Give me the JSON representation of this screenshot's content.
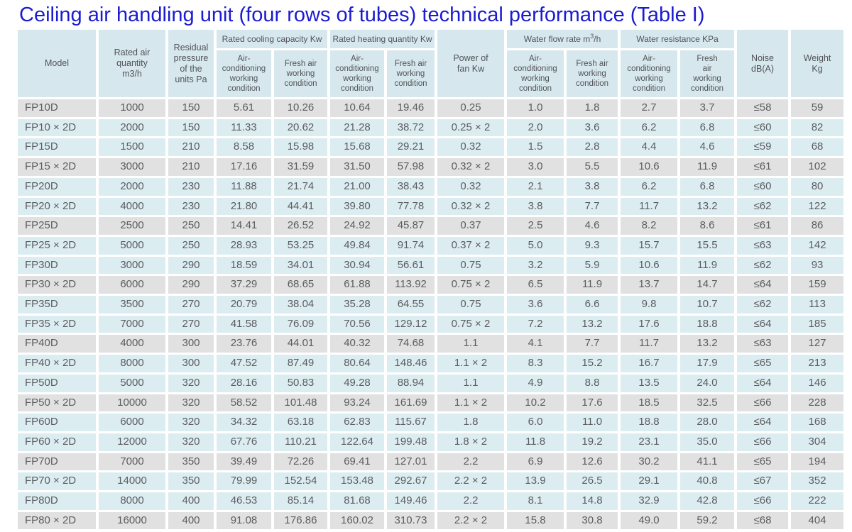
{
  "title": "Ceiling air handling unit (four rows of tubes) technical performance (Table I)",
  "colors": {
    "title_blue": "#1b1bd2",
    "header_cell_bg": "#d6e8ee",
    "row_blue_bg": "#dcedf2",
    "row_gray_bg": "#e1e1e1",
    "cell_text": "#5b5c5e"
  },
  "table": {
    "headers": {
      "model": "Model",
      "rated_air_quantity": "Rated air\nquantity\nm3/h",
      "residual_pressure": "Residual\npressure\nof the\nunits Pa",
      "cooling_group": "Rated cooling capacity Kw",
      "heating_group": "Rated heating quantity Kw",
      "fan_power": "Power of\nfan Kw",
      "water_flow_prefix": "Water flow rate m",
      "water_flow_sup": "3",
      "water_flow_suffix": "/h",
      "water_resistance_group": "Water resistance KPa",
      "ac_working_condition": "Air-\nconditioning\nworking\ncondition",
      "fresh_working_condition": "Fresh air\nworking\ncondition",
      "fresh_working_condition_narrow": "Fresh\nair\nworking\ncondition",
      "noise": "Noise\ndB(A)",
      "weight": "Weight\nKg"
    },
    "column_ids": [
      "model",
      "rated_air_quantity",
      "residual_pressure",
      "cooling_ac",
      "cooling_fresh",
      "heating_ac",
      "heating_fresh",
      "fan_power",
      "water_flow_ac",
      "water_flow_fresh",
      "water_resistance_ac",
      "water_resistance_fresh",
      "noise",
      "weight"
    ],
    "rows": [
      [
        "FP10D",
        "1000",
        "150",
        "5.61",
        "10.26",
        "10.64",
        "19.46",
        "0.25",
        "1.0",
        "1.8",
        "2.7",
        "3.7",
        "≤58",
        "59"
      ],
      [
        "FP10 × 2D",
        "2000",
        "150",
        "11.33",
        "20.62",
        "21.28",
        "38.72",
        "0.25 × 2",
        "2.0",
        "3.6",
        "6.2",
        "6.8",
        "≤60",
        "82"
      ],
      [
        "FP15D",
        "1500",
        "210",
        "8.58",
        "15.98",
        "15.68",
        "29.21",
        "0.32",
        "1.5",
        "2.8",
        "4.4",
        "4.6",
        "≤59",
        "68"
      ],
      [
        "FP15 × 2D",
        "3000",
        "210",
        "17.16",
        "31.59",
        "31.50",
        "57.98",
        "0.32 × 2",
        "3.0",
        "5.5",
        "10.6",
        "11.9",
        "≤61",
        "102"
      ],
      [
        "FP20D",
        "2000",
        "230",
        "11.88",
        "21.74",
        "21.00",
        "38.43",
        "0.32",
        "2.1",
        "3.8",
        "6.2",
        "6.8",
        "≤60",
        "80"
      ],
      [
        "FP20 × 2D",
        "4000",
        "230",
        "21.80",
        "44.41",
        "39.80",
        "77.78",
        "0.32 × 2",
        "3.8",
        "7.7",
        "11.7",
        "13.2",
        "≤62",
        "122"
      ],
      [
        "FP25D",
        "2500",
        "250",
        "14.41",
        "26.52",
        "24.92",
        "45.87",
        "0.37",
        "2.5",
        "4.6",
        "8.2",
        "8.6",
        "≤61",
        "86"
      ],
      [
        "FP25 × 2D",
        "5000",
        "250",
        "28.93",
        "53.25",
        "49.84",
        "91.74",
        "0.37 × 2",
        "5.0",
        "9.3",
        "15.7",
        "15.5",
        "≤63",
        "142"
      ],
      [
        "FP30D",
        "3000",
        "290",
        "18.59",
        "34.01",
        "30.94",
        "56.61",
        "0.75",
        "3.2",
        "5.9",
        "10.6",
        "11.9",
        "≤62",
        "93"
      ],
      [
        "FP30 × 2D",
        "6000",
        "290",
        "37.29",
        "68.65",
        "61.88",
        "113.92",
        "0.75 × 2",
        "6.5",
        "11.9",
        "13.7",
        "14.7",
        "≤64",
        "159"
      ],
      [
        "FP35D",
        "3500",
        "270",
        "20.79",
        "38.04",
        "35.28",
        "64.55",
        "0.75",
        "3.6",
        "6.6",
        "9.8",
        "10.7",
        "≤62",
        "113"
      ],
      [
        "FP35 × 2D",
        "7000",
        "270",
        "41.58",
        "76.09",
        "70.56",
        "129.12",
        "0.75 × 2",
        "7.2",
        "13.2",
        "17.6",
        "18.8",
        "≤64",
        "185"
      ],
      [
        "FP40D",
        "4000",
        "300",
        "23.76",
        "44.01",
        "40.32",
        "74.68",
        "1.1",
        "4.1",
        "7.7",
        "11.7",
        "13.2",
        "≤63",
        "127"
      ],
      [
        "FP40 × 2D",
        "8000",
        "300",
        "47.52",
        "87.49",
        "80.64",
        "148.46",
        "1.1 × 2",
        "8.3",
        "15.2",
        "16.7",
        "17.9",
        "≤65",
        "213"
      ],
      [
        "FP50D",
        "5000",
        "320",
        "28.16",
        "50.83",
        "49.28",
        "88.94",
        "1.1",
        "4.9",
        "8.8",
        "13.5",
        "24.0",
        "≤64",
        "146"
      ],
      [
        "FP50 × 2D",
        "10000",
        "320",
        "58.52",
        "101.48",
        "93.24",
        "161.69",
        "1.1 × 2",
        "10.2",
        "17.6",
        "18.5",
        "32.5",
        "≤66",
        "228"
      ],
      [
        "FP60D",
        "6000",
        "320",
        "34.32",
        "63.18",
        "62.83",
        "115.67",
        "1.8",
        "6.0",
        "11.0",
        "18.8",
        "28.0",
        "≤64",
        "168"
      ],
      [
        "FP60 × 2D",
        "12000",
        "320",
        "67.76",
        "110.21",
        "122.64",
        "199.48",
        "1.8 × 2",
        "11.8",
        "19.2",
        "23.1",
        "35.0",
        "≤66",
        "304"
      ],
      [
        "FP70D",
        "7000",
        "350",
        "39.49",
        "72.26",
        "69.41",
        "127.01",
        "2.2",
        "6.9",
        "12.6",
        "30.2",
        "41.1",
        "≤65",
        "194"
      ],
      [
        "FP70 × 2D",
        "14000",
        "350",
        "79.99",
        "152.54",
        "153.48",
        "292.67",
        "2.2 × 2",
        "13.9",
        "26.5",
        "29.1",
        "40.8",
        "≤67",
        "352"
      ],
      [
        "FP80D",
        "8000",
        "400",
        "46.53",
        "85.14",
        "81.68",
        "149.46",
        "2.2",
        "8.1",
        "14.8",
        "32.9",
        "42.8",
        "≤66",
        "222"
      ],
      [
        "FP80 × 2D",
        "16000",
        "400",
        "91.08",
        "176.86",
        "160.02",
        "310.73",
        "2.2 × 2",
        "15.8",
        "30.8",
        "49.0",
        "59.2",
        "≤68",
        "404"
      ]
    ]
  }
}
